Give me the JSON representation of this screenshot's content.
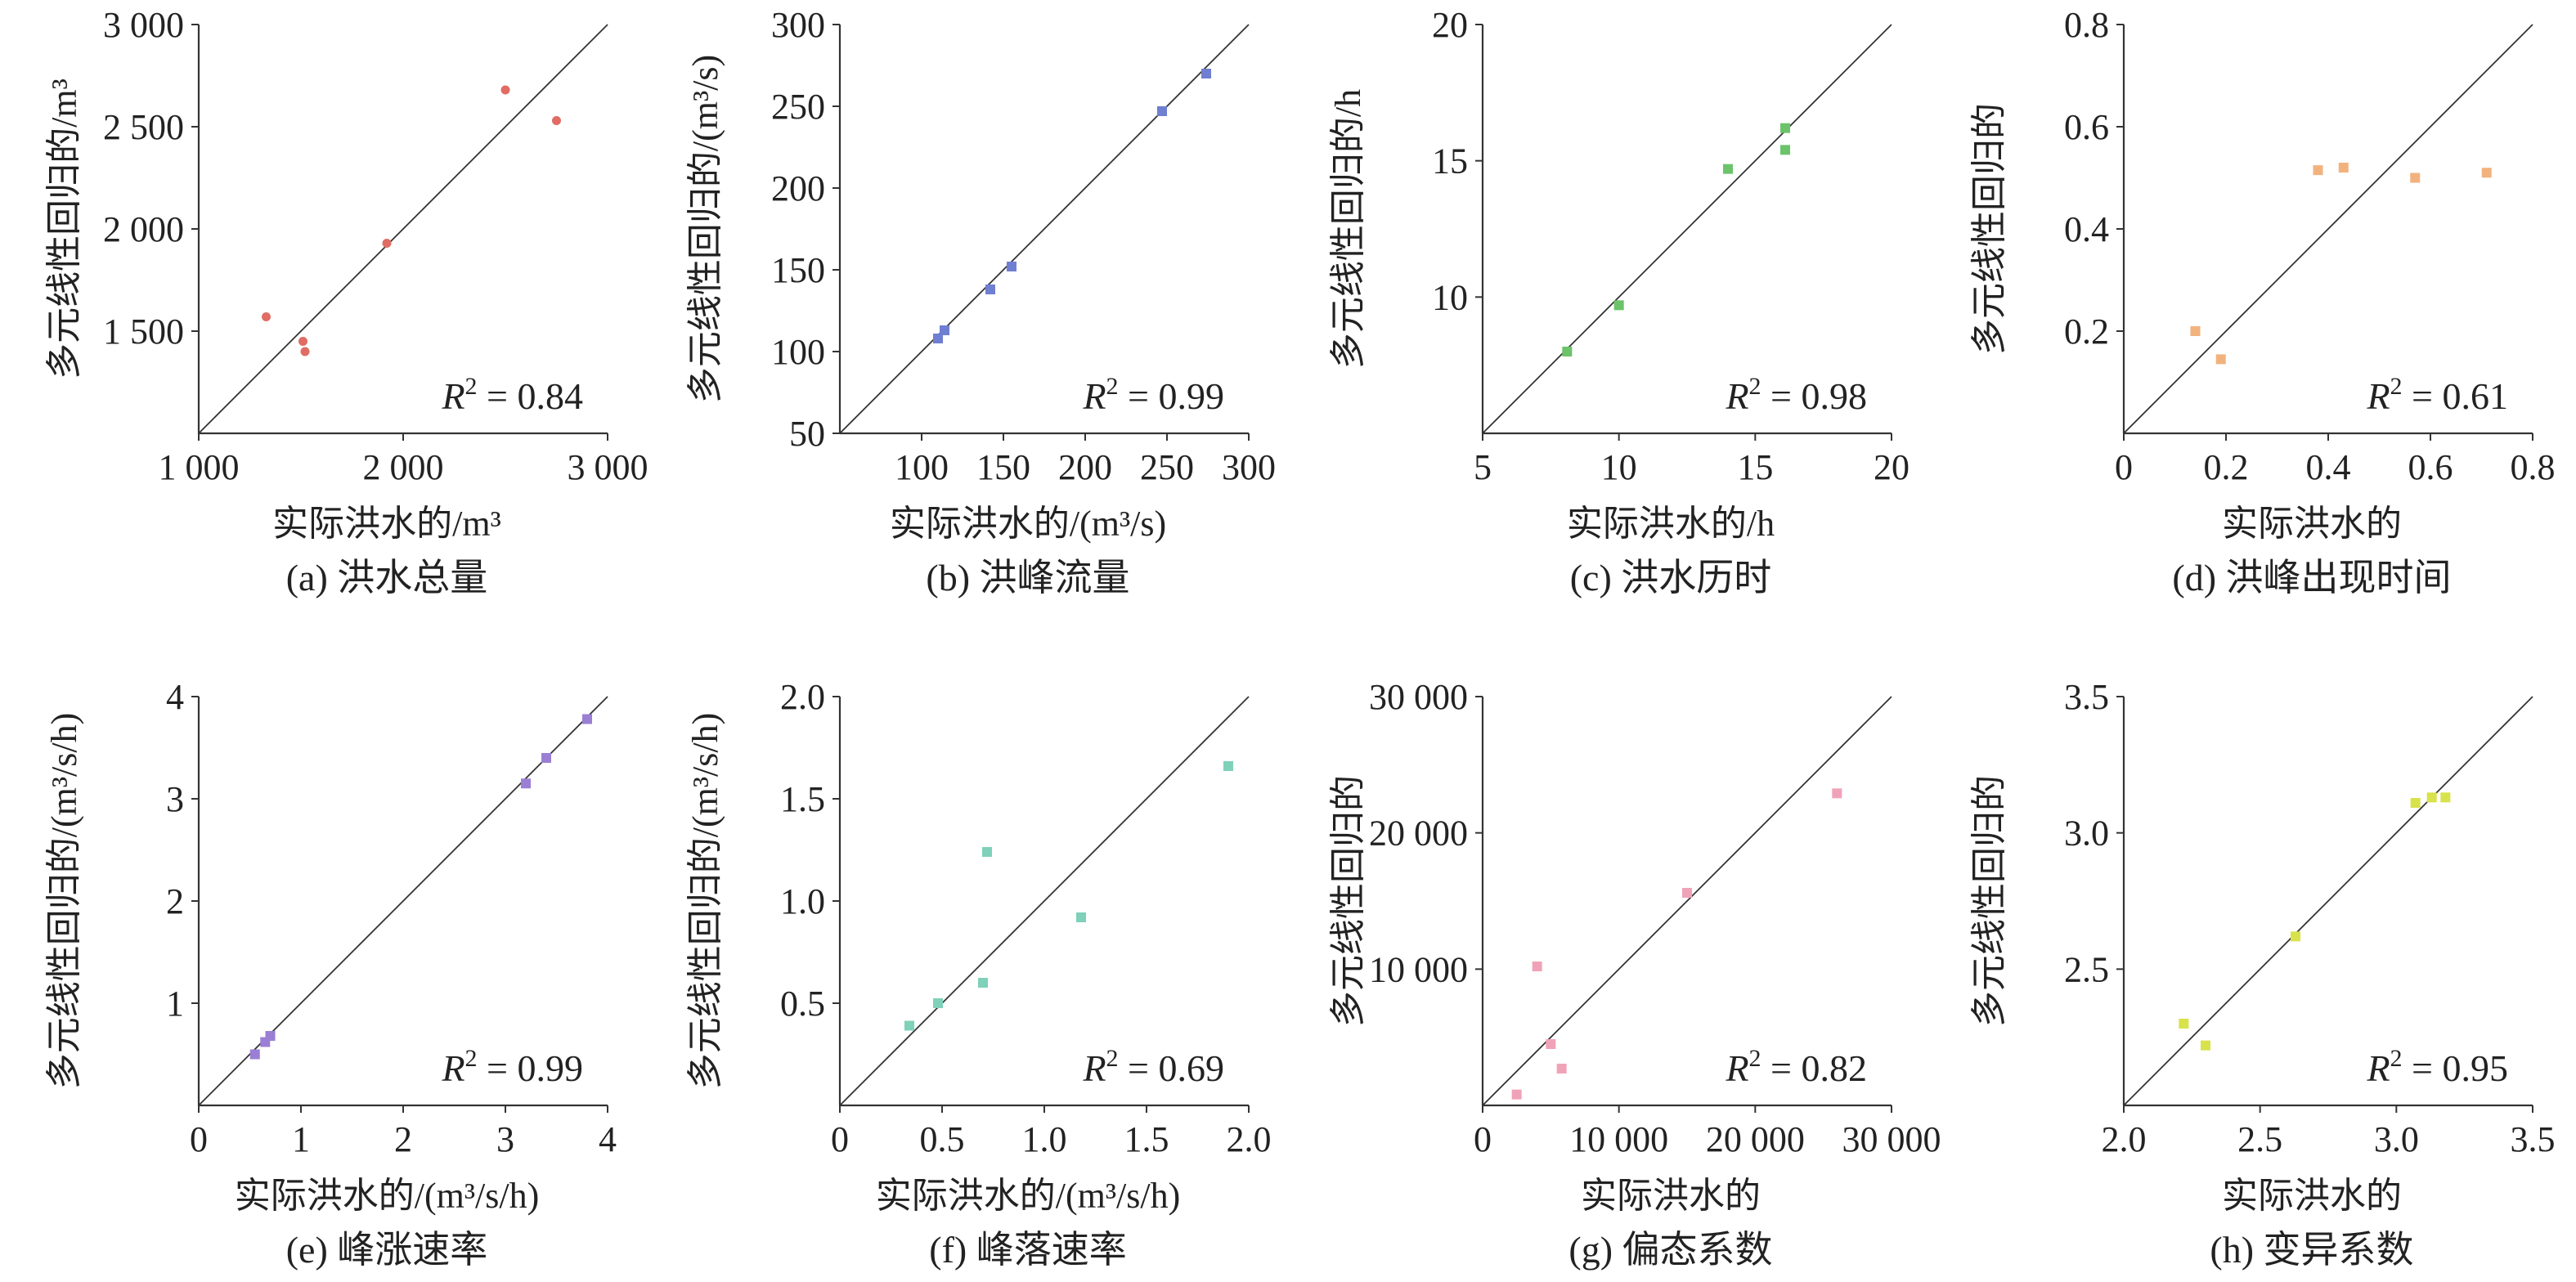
{
  "figure": {
    "panels": [
      {
        "caption": "(a) 洪水总量",
        "r2_value": "0.84",
        "color": "#e06c63",
        "chart_data": {
          "type": "scatter",
          "xlabel": "实际洪水的/m³",
          "ylabel": "多元线性回归的/m³",
          "xlim": [
            1000,
            3000
          ],
          "ylim": [
            1000,
            3000
          ],
          "xticks": [
            1000,
            2000,
            3000
          ],
          "xtick_labels": [
            "1 000",
            "2 000",
            "3 000"
          ],
          "yticks": [
            1500,
            2000,
            2500,
            3000
          ],
          "ytick_labels": [
            "1 500",
            "2 000",
            "2 500",
            "3 000"
          ],
          "reference_line": "y = x",
          "annotation": "R² = 0.84",
          "points": [
            [
              1330,
              1570
            ],
            [
              1510,
              1450
            ],
            [
              1520,
              1400
            ],
            [
              1920,
              1930
            ],
            [
              2500,
              2680
            ],
            [
              2750,
              2530
            ]
          ]
        }
      },
      {
        "caption": "(b) 洪峰流量",
        "r2_value": "0.99",
        "color": "#6f7fd1",
        "chart_data": {
          "type": "scatter",
          "xlabel": "实际洪水的/(m³/s)",
          "ylabel": "多元线性回归的/(m³/s)",
          "xlim": [
            50,
            300
          ],
          "ylim": [
            50,
            300
          ],
          "xticks": [
            100,
            150,
            200,
            250,
            300
          ],
          "xtick_labels": [
            "100",
            "150",
            "200",
            "250",
            "300"
          ],
          "yticks": [
            50,
            100,
            150,
            200,
            250,
            300
          ],
          "ytick_labels": [
            "50",
            "100",
            "150",
            "200",
            "250",
            "300"
          ],
          "reference_line": "y = x",
          "annotation": "R² = 0.99",
          "points": [
            [
              110,
              108
            ],
            [
              114,
              113
            ],
            [
              142,
              138
            ],
            [
              155,
              152
            ],
            [
              247,
              247
            ],
            [
              274,
              270
            ]
          ]
        }
      },
      {
        "caption": "(c) 洪水历时",
        "r2_value": "0.98",
        "color": "#6cc36a",
        "chart_data": {
          "type": "scatter",
          "xlabel": "实际洪水的/h",
          "ylabel": "多元线性回归的/h",
          "xlim": [
            5,
            20
          ],
          "ylim": [
            5,
            20
          ],
          "xticks": [
            5,
            10,
            15,
            20
          ],
          "xtick_labels": [
            "5",
            "10",
            "15",
            "20"
          ],
          "yticks": [
            10,
            15,
            20
          ],
          "ytick_labels": [
            "10",
            "15",
            "20"
          ],
          "reference_line": "y = x",
          "annotation": "R² = 0.98",
          "points": [
            [
              8.1,
              8.0
            ],
            [
              10.0,
              9.7
            ],
            [
              14.0,
              14.7
            ],
            [
              16.1,
              16.2
            ],
            [
              16.1,
              15.4
            ]
          ]
        }
      },
      {
        "caption": "(d) 洪峰出现时间",
        "r2_value": "0.61",
        "color": "#f2b27e",
        "chart_data": {
          "type": "scatter",
          "xlabel": "实际洪水的",
          "ylabel": "多元线性回归的",
          "xlim": [
            0,
            0.8
          ],
          "ylim": [
            0,
            0.8
          ],
          "xticks": [
            0,
            0.2,
            0.4,
            0.6,
            0.8
          ],
          "xtick_labels": [
            "0",
            "0.2",
            "0.4",
            "0.6",
            "0.8"
          ],
          "yticks": [
            0.2,
            0.4,
            0.6,
            0.8
          ],
          "ytick_labels": [
            "0.2",
            "0.4",
            "0.6",
            "0.8"
          ],
          "reference_line": "y = x",
          "annotation": "R² = 0.61",
          "points": [
            [
              0.14,
              0.2
            ],
            [
              0.19,
              0.145
            ],
            [
              0.38,
              0.515
            ],
            [
              0.43,
              0.52
            ],
            [
              0.57,
              0.5
            ],
            [
              0.71,
              0.51
            ]
          ]
        }
      },
      {
        "caption": "(e) 峰涨速率",
        "r2_value": "0.99",
        "color": "#9a7fd4",
        "chart_data": {
          "type": "scatter",
          "xlabel": "实际洪水的/(m³/s/h)",
          "ylabel": "多元线性回归的/(m³/s/h)",
          "xlim": [
            0,
            4
          ],
          "ylim": [
            0,
            4
          ],
          "xticks": [
            0,
            1,
            2,
            3,
            4
          ],
          "xtick_labels": [
            "0",
            "1",
            "2",
            "3",
            "4"
          ],
          "yticks": [
            1,
            2,
            3,
            4
          ],
          "ytick_labels": [
            "1",
            "2",
            "3",
            "4"
          ],
          "reference_line": "y = x",
          "annotation": "R² = 0.99",
          "points": [
            [
              0.55,
              0.5
            ],
            [
              0.65,
              0.62
            ],
            [
              0.7,
              0.68
            ],
            [
              3.2,
              3.15
            ],
            [
              3.4,
              3.4
            ],
            [
              3.8,
              3.78
            ]
          ]
        }
      },
      {
        "caption": "(f) 峰落速率",
        "r2_value": "0.69",
        "color": "#7fd1b9",
        "chart_data": {
          "type": "scatter",
          "xlabel": "实际洪水的/(m³/s/h)",
          "ylabel": "多元线性回归的/(m³/s/h)",
          "xlim": [
            0,
            2.0
          ],
          "ylim": [
            0,
            2.0
          ],
          "xticks": [
            0,
            0.5,
            1.0,
            1.5,
            2.0
          ],
          "xtick_labels": [
            "0",
            "0.5",
            "1.0",
            "1.5",
            "2.0"
          ],
          "yticks": [
            0.5,
            1.0,
            1.5,
            2.0
          ],
          "ytick_labels": [
            "0.5",
            "1.0",
            "1.5",
            "2.0"
          ],
          "reference_line": "y = x",
          "annotation": "R² = 0.69",
          "points": [
            [
              0.34,
              0.39
            ],
            [
              0.48,
              0.5
            ],
            [
              0.7,
              0.6
            ],
            [
              0.72,
              1.24
            ],
            [
              1.18,
              0.92
            ],
            [
              1.9,
              1.66
            ]
          ]
        }
      },
      {
        "caption": "(g) 偏态系数",
        "r2_value": "0.82",
        "color": "#f0a3b8",
        "chart_data": {
          "type": "scatter",
          "xlabel": "实际洪水的",
          "ylabel": "多元线性回归的",
          "xlim": [
            0,
            30000
          ],
          "ylim": [
            0,
            30000
          ],
          "xticks": [
            0,
            10000,
            20000,
            30000
          ],
          "xtick_labels": [
            "0",
            "10 000",
            "20 000",
            "30 000"
          ],
          "yticks": [
            10000,
            20000,
            30000
          ],
          "ytick_labels": [
            "10 000",
            "20 000",
            "30 000"
          ],
          "reference_line": "y = x",
          "annotation": "R² = 0.82",
          "points": [
            [
              2500,
              800
            ],
            [
              4000,
              10200
            ],
            [
              5000,
              4500
            ],
            [
              5800,
              2700
            ],
            [
              15000,
              15600
            ],
            [
              26000,
              22900
            ]
          ]
        }
      },
      {
        "caption": "(h) 变异系数",
        "r2_value": "0.95",
        "color": "#d8e24a",
        "chart_data": {
          "type": "scatter",
          "xlabel": "实际洪水的",
          "ylabel": "多元线性回归的",
          "xlim": [
            2.0,
            3.5
          ],
          "ylim": [
            2.0,
            3.5
          ],
          "xticks": [
            2.0,
            2.5,
            3.0,
            3.5
          ],
          "xtick_labels": [
            "2.0",
            "2.5",
            "3.0",
            "3.5"
          ],
          "yticks": [
            2.5,
            3.0,
            3.5
          ],
          "ytick_labels": [
            "2.5",
            "3.0",
            "3.5"
          ],
          "reference_line": "y = x",
          "annotation": "R² = 0.95",
          "points": [
            [
              2.22,
              2.3
            ],
            [
              2.3,
              2.22
            ],
            [
              2.63,
              2.62
            ],
            [
              3.07,
              3.11
            ],
            [
              3.13,
              3.13
            ],
            [
              3.18,
              3.13
            ]
          ]
        }
      }
    ]
  }
}
